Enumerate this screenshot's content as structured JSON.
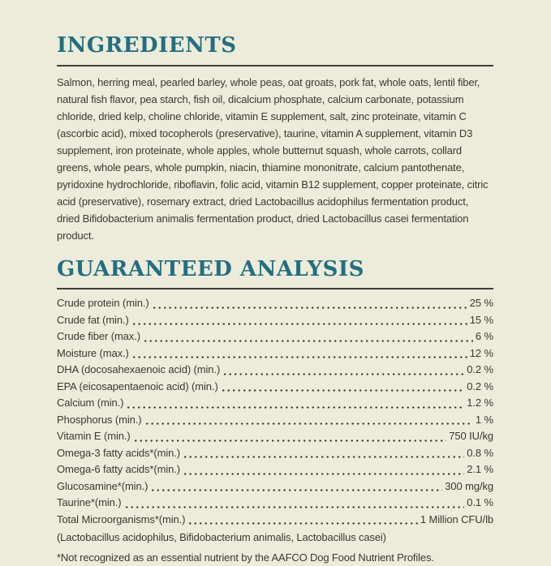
{
  "colors": {
    "background": "#EDEBDA",
    "heading_accent": "#226F80",
    "body_text": "#3B3A2F",
    "divider": "#403E35"
  },
  "ingredients": {
    "heading": "INGREDIENTS",
    "text": "Salmon, herring meal, pearled barley, whole peas, oat groats, pork fat, whole oats, lentil fiber, natural fish flavor, pea starch, fish oil, dicalcium phosphate, calcium carbonate, potassium chloride, dried kelp, choline chloride, vitamin E supplement, salt, zinc proteinate, vitamin C (ascorbic acid), mixed tocopherols (preservative), taurine, vitamin A supplement, vitamin D3 supplement, iron proteinate, whole apples, whole butternut squash, whole carrots, collard greens, whole pears, whole pumpkin, niacin, thiamine mononitrate, calcium pantothenate, pyridoxine hydrochloride, riboflavin, folic acid, vitamin B12 supplement, copper proteinate, citric acid (preservative), rosemary extract, dried Lactobacillus acidophilus fermentation product, dried Bifidobacterium animalis fermentation product, dried Lactobacillus casei fermentation product."
  },
  "guaranteed_analysis": {
    "heading": "GUARANTEED ANALYSIS",
    "rows": [
      {
        "label": "Crude protein (min.)",
        "value": "25 %"
      },
      {
        "label": "Crude fat (min.)",
        "value": "15 %"
      },
      {
        "label": "Crude fiber (max.)",
        "value": "6 %"
      },
      {
        "label": "Moisture (max.)",
        "value": "12 %"
      },
      {
        "label": "DHA (docosahexaenoic acid) (min.)",
        "value": "0.2 %"
      },
      {
        "label": "EPA (eicosapentaenoic acid) (min.)",
        "value": "0.2 %"
      },
      {
        "label": "Calcium (min.)",
        "value": "1.2 %"
      },
      {
        "label": "Phosphorus (min.)",
        "value": "1 %"
      },
      {
        "label": "Vitamin E (min.)",
        "value": "750 IU/kg"
      },
      {
        "label": "Omega-3 fatty acids*(min.)",
        "value": "0.8 %"
      },
      {
        "label": "Omega-6 fatty acids*(min.)",
        "value": "2.1 %"
      },
      {
        "label": "Glucosamine*(min.)",
        "value": "300 mg/kg"
      },
      {
        "label": "Taurine*(min.)",
        "value": "0.1 %"
      },
      {
        "label": "Total Microorganisms*(min.)",
        "value": "1 Million CFU/lb"
      }
    ],
    "subnote": "(Lactobacillus acidophilus, Bifidobacterium animalis, Lactobacillus casei)",
    "footnote": "*Not recognized as an essential nutrient by the AAFCO Dog Food Nutrient Profiles."
  }
}
